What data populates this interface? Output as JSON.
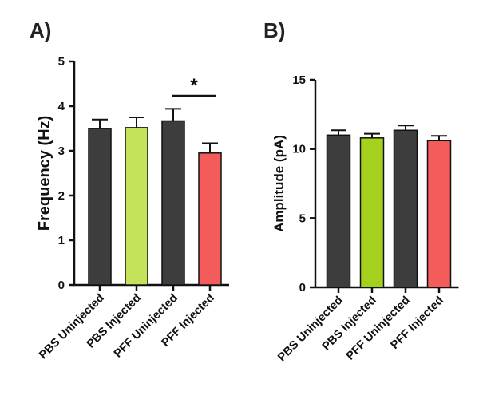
{
  "chart_data": [
    {
      "type": "bar",
      "panel_label": "A)",
      "categories": [
        "PBS Uninjected",
        "PBS Injected",
        "PFF Uninjected",
        "PFF Injected"
      ],
      "values": [
        3.5,
        3.52,
        3.67,
        2.95
      ],
      "errors": [
        0.2,
        0.23,
        0.27,
        0.22
      ],
      "colors": [
        "#3d3d3d",
        "#c5e35a",
        "#3d3d3d",
        "#f45b5b"
      ],
      "ylabel": "Frequency (Hz)",
      "xlabel": "",
      "ylim": [
        0,
        5
      ],
      "yticks": [
        0,
        1,
        2,
        3,
        4,
        5
      ],
      "significance": {
        "between": [
          2,
          3
        ],
        "label": "*"
      },
      "grid": false
    },
    {
      "type": "bar",
      "panel_label": "B)",
      "categories": [
        "PBS Uninjected",
        "PBS Injected",
        "PFF Uninjected",
        "PFF Injected"
      ],
      "values": [
        11.0,
        10.8,
        11.35,
        10.6
      ],
      "errors": [
        0.35,
        0.3,
        0.35,
        0.35
      ],
      "colors": [
        "#3d3d3d",
        "#a3d11e",
        "#3d3d3d",
        "#f45b5b"
      ],
      "ylabel": "Amplitude (pA)",
      "xlabel": "",
      "ylim": [
        0,
        15
      ],
      "yticks": [
        0,
        5,
        10,
        15
      ],
      "grid": false
    }
  ]
}
